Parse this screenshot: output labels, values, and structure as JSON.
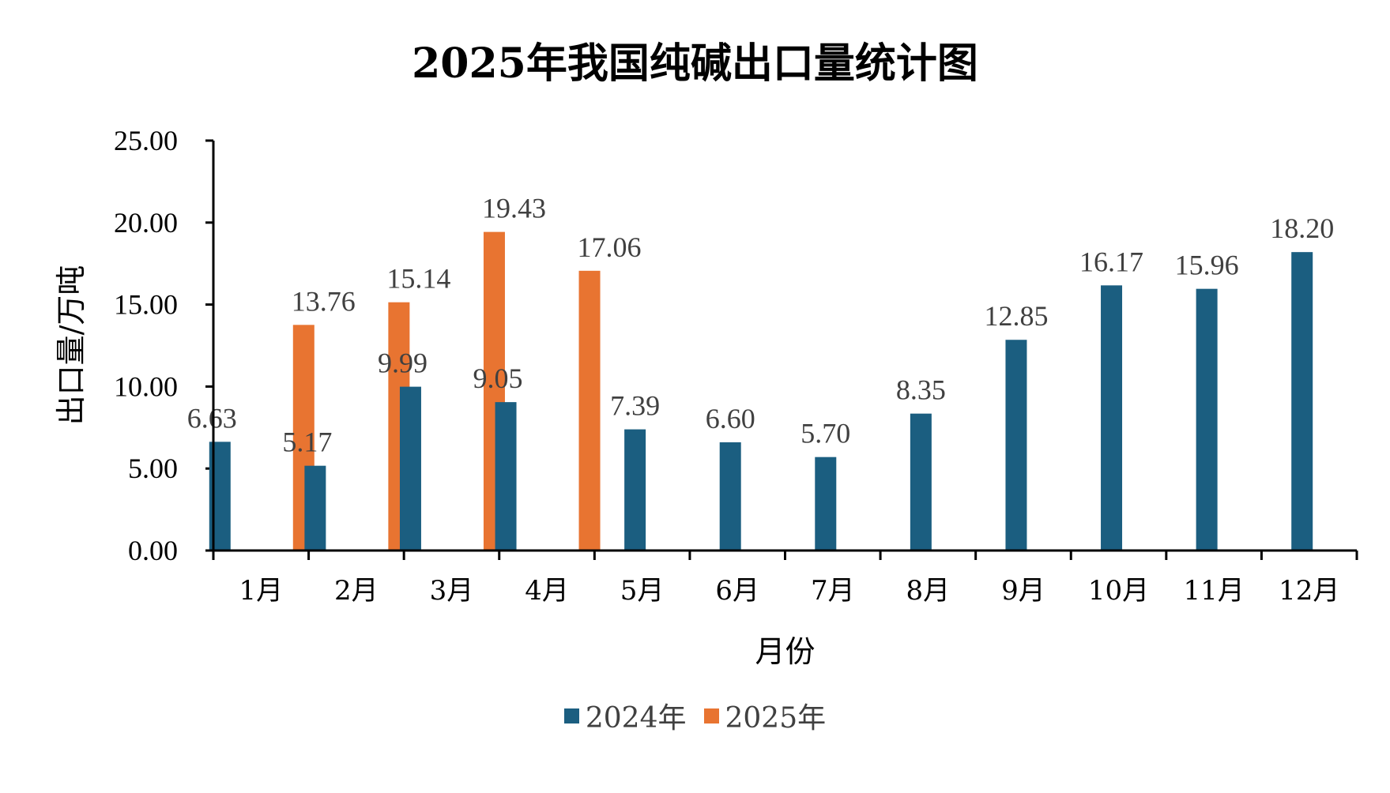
{
  "chart_data": {
    "type": "bar",
    "title": "2025年我国纯碱出口量统计图",
    "xlabel": "月份",
    "ylabel": "出口量/万吨",
    "ylim": [
      0,
      25
    ],
    "yticks": [
      "0.00",
      "5.00",
      "10.00",
      "15.00",
      "20.00",
      "25.00"
    ],
    "categories": [
      "1月",
      "2月",
      "3月",
      "4月",
      "5月",
      "6月",
      "7月",
      "8月",
      "9月",
      "10月",
      "11月",
      "12月"
    ],
    "series": [
      {
        "name": "2024年",
        "color": "#1b5e80",
        "values": [
          6.63,
          5.17,
          9.99,
          9.05,
          7.39,
          6.6,
          5.7,
          8.35,
          12.85,
          16.17,
          15.96,
          18.2
        ],
        "labels": [
          "6.63",
          "5.17",
          "9.99",
          "9.05",
          "7.39",
          "6.60",
          "5.70",
          "8.35",
          "12.85",
          "16.17",
          "15.96",
          "18.20"
        ]
      },
      {
        "name": "2025年",
        "color": "#e87431",
        "values": [
          13.76,
          15.14,
          19.43,
          17.06,
          null,
          null,
          null,
          null,
          null,
          null,
          null,
          null
        ],
        "labels": [
          "13.76",
          "15.14",
          "19.43",
          "17.06",
          null,
          null,
          null,
          null,
          null,
          null,
          null,
          null
        ]
      }
    ],
    "legend_position": "bottom",
    "grid": false
  }
}
